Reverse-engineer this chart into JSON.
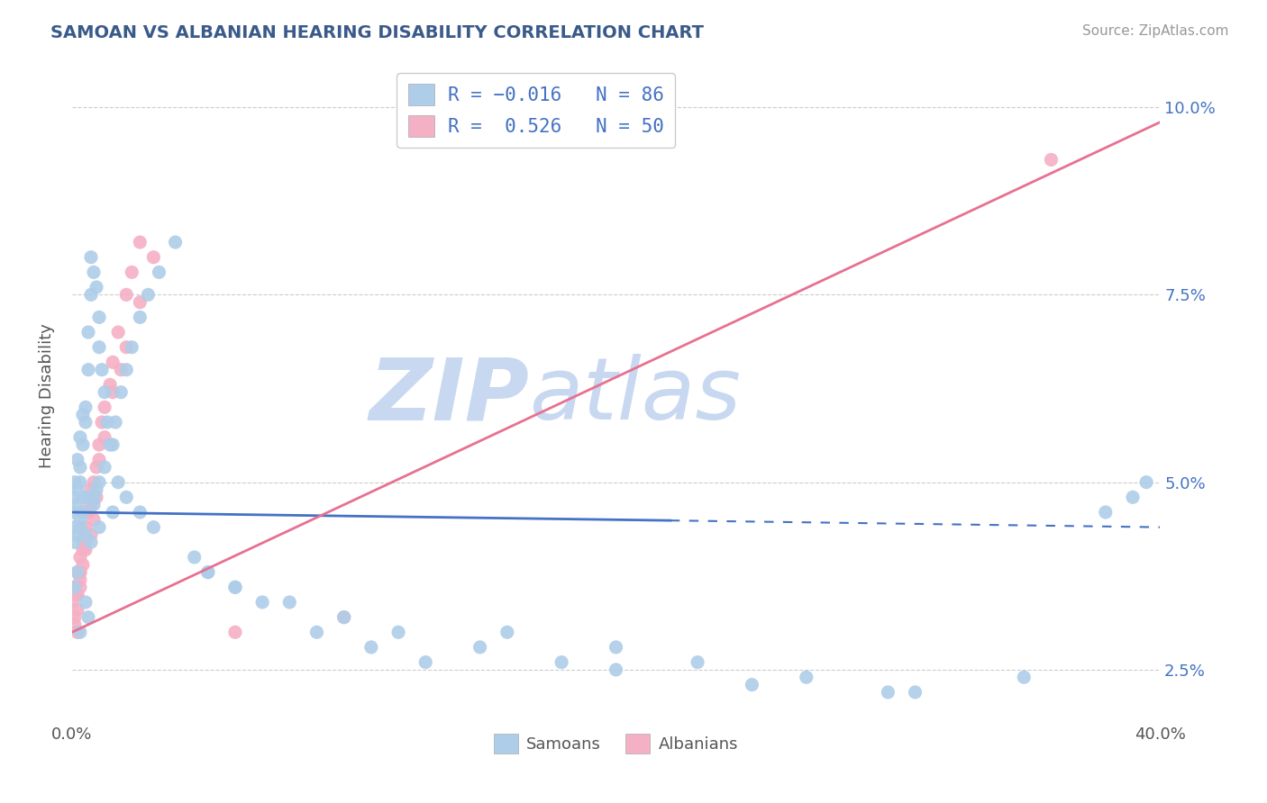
{
  "title": "SAMOAN VS ALBANIAN HEARING DISABILITY CORRELATION CHART",
  "source": "Source: ZipAtlas.com",
  "ylabel": "Hearing Disability",
  "legend_samoan_label": "Samoans",
  "legend_albanian_label": "Albanians",
  "legend_samoan_R": "R = -0.016",
  "legend_samoan_N": "N = 86",
  "legend_albanian_R": "R =  0.526",
  "legend_albanian_N": "N = 50",
  "samoan_color": "#aecde8",
  "albanian_color": "#f4b0c4",
  "samoan_line_color": "#4472c4",
  "albanian_line_color": "#e87090",
  "watermark_zip_color": "#c8d8f0",
  "watermark_atlas_color": "#c8d8f0",
  "background_color": "#ffffff",
  "xlim": [
    0.0,
    0.4
  ],
  "ylim": [
    0.018,
    0.105
  ],
  "ytick_vals": [
    0.025,
    0.05,
    0.075,
    0.1
  ],
  "ytick_labels": [
    "2.5%",
    "5.0%",
    "7.5%",
    "10.0%"
  ],
  "xtick_vals": [
    0.0,
    0.4
  ],
  "xtick_labels": [
    "0.0%",
    "40.0%"
  ],
  "samoan_line_x": [
    0.0,
    0.4
  ],
  "samoan_line_y": [
    0.046,
    0.044
  ],
  "albanian_line_x": [
    0.0,
    0.4
  ],
  "albanian_line_y": [
    0.03,
    0.098
  ],
  "samoan_line_solid_end": 0.32,
  "samoan_pts_x": [
    0.0,
    0.001,
    0.001,
    0.001,
    0.002,
    0.002,
    0.002,
    0.003,
    0.003,
    0.003,
    0.004,
    0.004,
    0.005,
    0.005,
    0.006,
    0.006,
    0.007,
    0.007,
    0.008,
    0.009,
    0.01,
    0.01,
    0.011,
    0.012,
    0.013,
    0.015,
    0.017,
    0.02,
    0.025,
    0.03,
    0.003,
    0.004,
    0.005,
    0.006,
    0.007,
    0.008,
    0.009,
    0.001,
    0.002,
    0.003,
    0.004,
    0.002,
    0.001,
    0.005,
    0.006,
    0.003,
    0.05,
    0.06,
    0.08,
    0.1,
    0.12,
    0.15,
    0.18,
    0.2,
    0.25,
    0.3,
    0.35,
    0.008,
    0.01,
    0.012,
    0.014,
    0.016,
    0.018,
    0.02,
    0.022,
    0.025,
    0.028,
    0.032,
    0.038,
    0.045,
    0.05,
    0.06,
    0.07,
    0.09,
    0.11,
    0.13,
    0.16,
    0.2,
    0.23,
    0.27,
    0.31,
    0.38,
    0.39,
    0.395,
    0.01,
    0.015
  ],
  "samoan_pts_y": [
    0.046,
    0.048,
    0.044,
    0.042,
    0.047,
    0.049,
    0.043,
    0.05,
    0.045,
    0.052,
    0.055,
    0.048,
    0.06,
    0.058,
    0.065,
    0.07,
    0.075,
    0.08,
    0.078,
    0.076,
    0.072,
    0.068,
    0.065,
    0.062,
    0.058,
    0.055,
    0.05,
    0.048,
    0.046,
    0.044,
    0.044,
    0.046,
    0.043,
    0.048,
    0.042,
    0.047,
    0.049,
    0.05,
    0.053,
    0.056,
    0.059,
    0.038,
    0.036,
    0.034,
    0.032,
    0.03,
    0.038,
    0.036,
    0.034,
    0.032,
    0.03,
    0.028,
    0.026,
    0.025,
    0.023,
    0.022,
    0.024,
    0.048,
    0.05,
    0.052,
    0.055,
    0.058,
    0.062,
    0.065,
    0.068,
    0.072,
    0.075,
    0.078,
    0.082,
    0.04,
    0.038,
    0.036,
    0.034,
    0.03,
    0.028,
    0.026,
    0.03,
    0.028,
    0.026,
    0.024,
    0.022,
    0.046,
    0.048,
    0.05,
    0.044,
    0.046
  ],
  "albanian_pts_x": [
    0.0,
    0.001,
    0.001,
    0.002,
    0.002,
    0.003,
    0.003,
    0.004,
    0.005,
    0.005,
    0.006,
    0.007,
    0.008,
    0.009,
    0.01,
    0.011,
    0.012,
    0.014,
    0.015,
    0.017,
    0.02,
    0.022,
    0.025,
    0.003,
    0.004,
    0.005,
    0.006,
    0.007,
    0.003,
    0.004,
    0.002,
    0.001,
    0.002,
    0.003,
    0.005,
    0.007,
    0.01,
    0.012,
    0.015,
    0.018,
    0.02,
    0.025,
    0.03,
    0.007,
    0.008,
    0.009,
    0.06,
    0.1,
    0.36,
    0.002
  ],
  "albanian_pts_y": [
    0.034,
    0.036,
    0.032,
    0.038,
    0.035,
    0.04,
    0.037,
    0.042,
    0.044,
    0.041,
    0.046,
    0.048,
    0.05,
    0.052,
    0.055,
    0.058,
    0.06,
    0.063,
    0.066,
    0.07,
    0.075,
    0.078,
    0.082,
    0.038,
    0.041,
    0.043,
    0.046,
    0.049,
    0.036,
    0.039,
    0.033,
    0.031,
    0.035,
    0.038,
    0.042,
    0.047,
    0.053,
    0.056,
    0.062,
    0.065,
    0.068,
    0.074,
    0.08,
    0.043,
    0.045,
    0.048,
    0.03,
    0.032,
    0.093,
    0.03
  ]
}
